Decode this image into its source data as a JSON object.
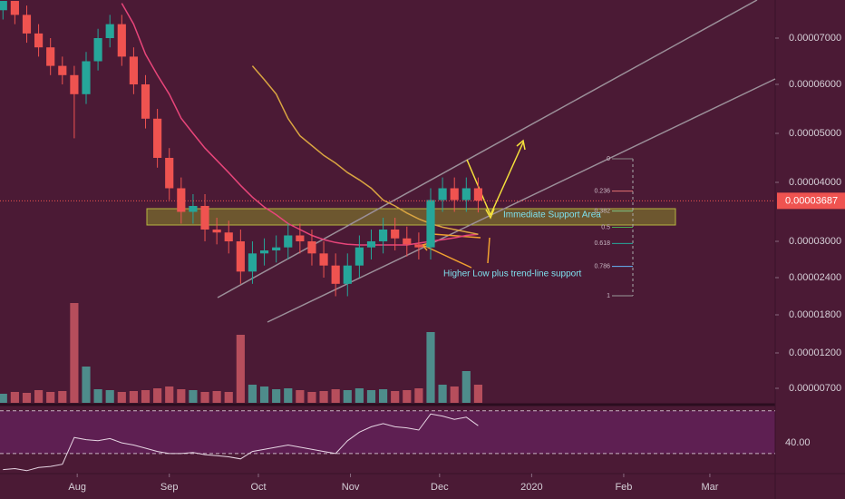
{
  "chart_data": {
    "type": "candlestick",
    "x": [
      2,
      6,
      10,
      14,
      18,
      22,
      26,
      30,
      34,
      38,
      42,
      46,
      50,
      54,
      58,
      62,
      66,
      70,
      74,
      78,
      82,
      86,
      90,
      94,
      98,
      102,
      106,
      110,
      114,
      118,
      122,
      126,
      130,
      134,
      138,
      142,
      146,
      150,
      154,
      158,
      162
    ],
    "open": [
      7.6e-05,
      7.8e-05,
      7.5e-05,
      7.1e-05,
      6.8e-05,
      6.4e-05,
      6.2e-05,
      5.8e-05,
      6.5e-05,
      7e-05,
      7.3e-05,
      6.6e-05,
      6e-05,
      5.3e-05,
      4.5e-05,
      3.9e-05,
      3.5e-05,
      3.6e-05,
      3.2e-05,
      3.15e-05,
      3e-05,
      2.5e-05,
      2.8e-05,
      2.85e-05,
      2.9e-05,
      3.1e-05,
      3e-05,
      2.8e-05,
      2.6e-05,
      2.3e-05,
      2.6e-05,
      2.9e-05,
      3e-05,
      3.2e-05,
      3.05e-05,
      2.95e-05,
      2.9e-05,
      3.7e-05,
      3.9e-05,
      3.7e-05,
      3.9e-05
    ],
    "high": [
      7.8e-05,
      7.8e-05,
      7.7e-05,
      7.3e-05,
      7e-05,
      6.6e-05,
      6.4e-05,
      6.7e-05,
      7.2e-05,
      7.5e-05,
      7.5e-05,
      6.8e-05,
      6.2e-05,
      5.5e-05,
      4.7e-05,
      4.1e-05,
      3.8e-05,
      3.8e-05,
      3.4e-05,
      3.35e-05,
      3.2e-05,
      3e-05,
      3.05e-05,
      3.1e-05,
      3.3e-05,
      3.3e-05,
      3.2e-05,
      3e-05,
      2.8e-05,
      2.8e-05,
      3.1e-05,
      3.2e-05,
      3.4e-05,
      3.4e-05,
      3.25e-05,
      3.15e-05,
      3.9e-05,
      4.1e-05,
      4.1e-05,
      4.1e-05,
      4.1e-05
    ],
    "low": [
      7.4e-05,
      7.3e-05,
      6.9e-05,
      6.6e-05,
      6.2e-05,
      6e-05,
      4.9e-05,
      5.6e-05,
      6.3e-05,
      6.8e-05,
      6.4e-05,
      5.8e-05,
      5.1e-05,
      4.3e-05,
      3.7e-05,
      3.3e-05,
      3.3e-05,
      3e-05,
      2.95e-05,
      2.8e-05,
      2.3e-05,
      2.3e-05,
      2.6e-05,
      2.65e-05,
      2.7e-05,
      2.8e-05,
      2.6e-05,
      2.4e-05,
      2.1e-05,
      2.1e-05,
      2.4e-05,
      2.7e-05,
      2.8e-05,
      2.85e-05,
      2.75e-05,
      2.7e-05,
      2.7e-05,
      3.5e-05,
      3.5e-05,
      3.5e-05,
      3.49e-05
    ],
    "close": [
      7.8e-05,
      7.5e-05,
      7.1e-05,
      6.8e-05,
      6.4e-05,
      6.2e-05,
      5.8e-05,
      6.5e-05,
      7e-05,
      7.3e-05,
      6.6e-05,
      6e-05,
      5.3e-05,
      4.5e-05,
      3.9e-05,
      3.5e-05,
      3.6e-05,
      3.2e-05,
      3.15e-05,
      3e-05,
      2.5e-05,
      2.8e-05,
      2.85e-05,
      2.9e-05,
      3.1e-05,
      3e-05,
      2.8e-05,
      2.6e-05,
      2.3e-05,
      2.6e-05,
      2.9e-05,
      3e-05,
      3.2e-05,
      3.05e-05,
      2.95e-05,
      2.9e-05,
      3.7e-05,
      3.9e-05,
      3.7e-05,
      3.9e-05,
      3.69e-05
    ],
    "up_color": "#26a69a",
    "down_color": "#ef5350",
    "ylim": [
      4.8e-06,
      7.82e-05
    ],
    "yticks": [
      {
        "value": 7e-06,
        "label": "0.00000700"
      },
      {
        "value": 1.2e-05,
        "label": "0.00001200"
      },
      {
        "value": 1.8e-05,
        "label": "0.00001800"
      },
      {
        "value": 2.4e-05,
        "label": "0.00002400"
      },
      {
        "value": 3e-05,
        "label": "0.00003000"
      },
      {
        "value": 4e-05,
        "label": "0.00004000"
      },
      {
        "value": 5e-05,
        "label": "0.00005000"
      },
      {
        "value": 6e-05,
        "label": "0.00006000"
      },
      {
        "value": 7e-05,
        "label": "0.00007000"
      }
    ],
    "xlim": [
      1,
      262
    ],
    "xticks": [
      {
        "value": 27,
        "label": "Aug"
      },
      {
        "value": 58,
        "label": "Sep"
      },
      {
        "value": 88,
        "label": "Oct"
      },
      {
        "value": 119,
        "label": "Nov"
      },
      {
        "value": 149,
        "label": "Dec"
      },
      {
        "value": 180,
        "label": "2020"
      },
      {
        "value": 211,
        "label": "Feb"
      },
      {
        "value": 240,
        "label": "Mar"
      }
    ],
    "current_price": {
      "value": 3.687e-05,
      "label": "0.00003687"
    },
    "series": [
      {
        "color": "#e8457a",
        "values": [
          null,
          null,
          null,
          null,
          null,
          null,
          null,
          null,
          null,
          null,
          7.75e-05,
          7.3e-05,
          6.65e-05,
          6.2e-05,
          5.8e-05,
          5.31e-05,
          5e-05,
          4.7e-05,
          4.45e-05,
          4.2e-05,
          3.95e-05,
          3.75e-05,
          3.58e-05,
          3.45e-05,
          3.3e-05,
          3.2e-05,
          3.1e-05,
          3.03e-05,
          2.98e-05,
          2.95e-05,
          2.94e-05,
          2.94e-05,
          2.94e-05,
          2.94e-05,
          2.94e-05,
          2.97e-05,
          3e-05,
          3.03e-05,
          3.06e-05,
          3.1e-05,
          3.12e-05
        ]
      },
      {
        "color": "#d9a441",
        "values": [
          null,
          null,
          null,
          null,
          null,
          null,
          null,
          null,
          null,
          null,
          null,
          null,
          null,
          null,
          null,
          null,
          null,
          null,
          null,
          null,
          null,
          6.4e-05,
          6.1e-05,
          5.8e-05,
          5.3e-05,
          4.95e-05,
          4.75e-05,
          4.55e-05,
          4.39e-05,
          4.2e-05,
          4.05e-05,
          3.9e-05,
          3.7e-05,
          3.6e-05,
          3.48e-05,
          3.38e-05,
          3.3e-05,
          3.24e-05,
          3.2e-05,
          3.16e-05,
          3.12e-05
        ]
      }
    ],
    "volume": [
      10,
      12,
      11,
      14,
      12,
      13,
      110,
      40,
      15,
      14,
      12,
      13,
      14,
      16,
      18,
      15,
      14,
      12,
      13,
      12,
      75,
      20,
      18,
      15,
      16,
      14,
      12,
      13,
      15,
      14,
      16,
      14,
      15,
      13,
      14,
      16,
      78,
      20,
      18,
      35,
      20
    ],
    "volume_lim": [
      0,
      120
    ],
    "rsi": {
      "values": [
        15,
        16,
        14,
        17,
        18,
        20,
        45,
        43,
        42,
        44,
        40,
        38,
        35,
        32,
        30,
        30,
        31,
        29,
        28,
        27,
        25,
        32,
        34,
        36,
        38,
        36,
        34,
        32,
        30,
        42,
        50,
        55,
        58,
        55,
        54,
        52,
        67,
        65,
        62,
        64,
        56
      ],
      "ylim": [
        13,
        74
      ],
      "yticks": [
        {
          "value": 40,
          "label": "40.00"
        }
      ],
      "levels": [
        30,
        70
      ],
      "color": "#e6d5e3"
    },
    "fib_levels": [
      0,
      0.236,
      0.382,
      0.5,
      0.618,
      0.786,
      1
    ],
    "annotations": [
      "Immediate Support Area",
      "Higher Low plus trend-line support"
    ]
  }
}
